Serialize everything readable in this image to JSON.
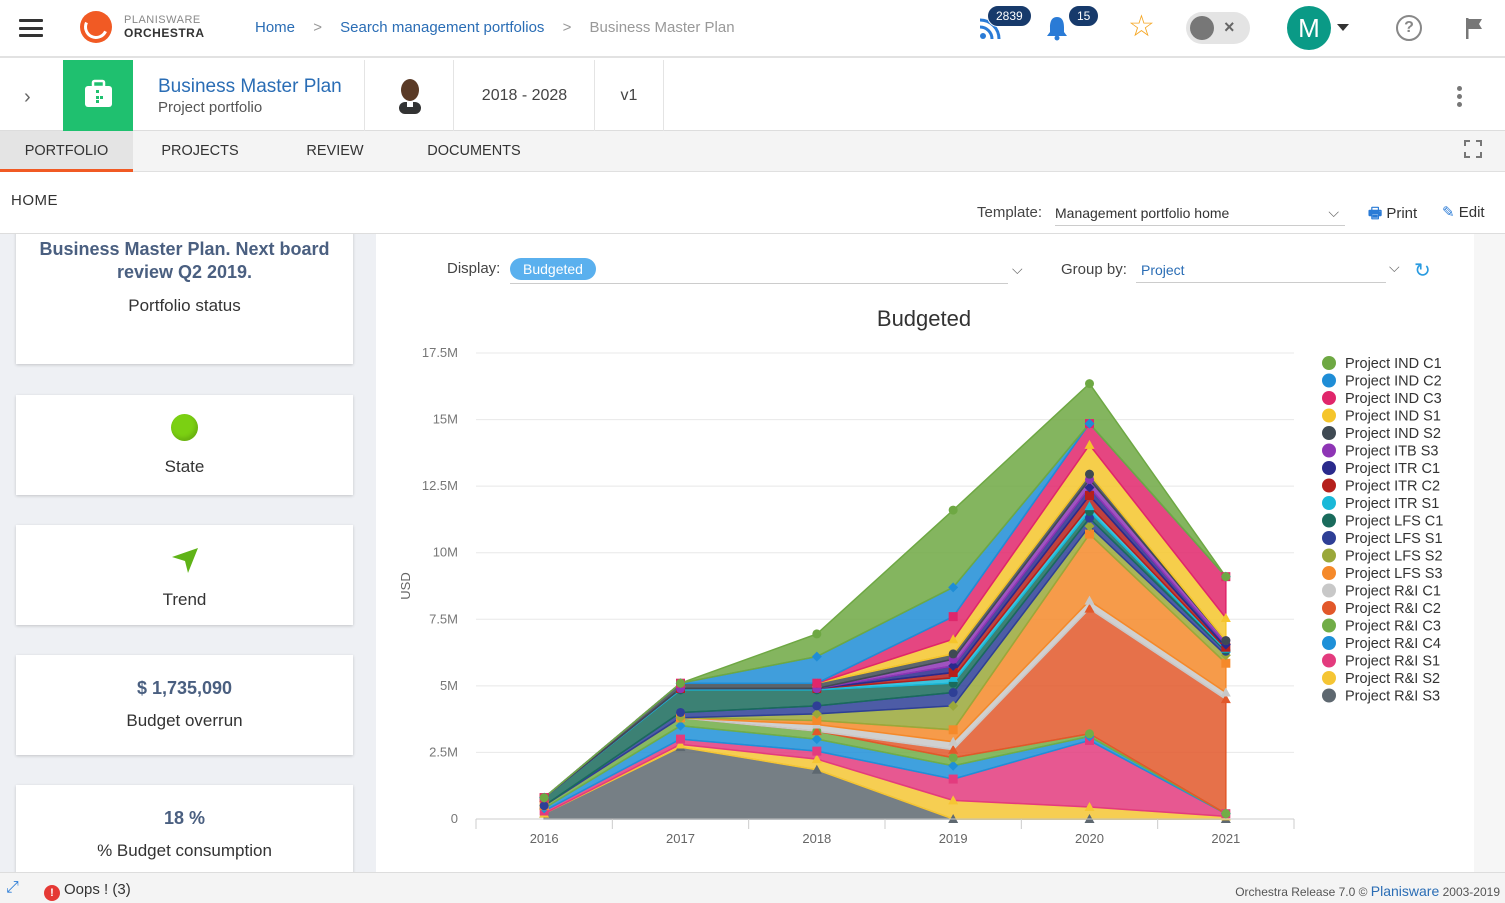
{
  "app": {
    "logo_line1": "PLANISWARE",
    "logo_line2": "ORCHESTRA"
  },
  "breadcrumb": {
    "items": [
      "Home",
      "Search management portfolios",
      "Business Master Plan"
    ],
    "separator": ">"
  },
  "topbar": {
    "feed_count": "2839",
    "notif_count": "15",
    "avatar_letter": "M",
    "help_symbol": "?"
  },
  "header": {
    "title": "Business Master Plan",
    "subtitle": "Project portfolio",
    "period": "2018 - 2028",
    "version": "v1"
  },
  "tabs": [
    "PORTFOLIO",
    "PROJECTS",
    "REVIEW",
    "DOCUMENTS"
  ],
  "home": {
    "label": "HOME",
    "template_label": "Template:",
    "template_value": "Management portfolio home",
    "print": "Print",
    "edit": "Edit"
  },
  "cards": {
    "status_title": "Business Master Plan. Next board review Q2 2019.",
    "status_label": "Portfolio status",
    "state_label": "State",
    "trend_label": "Trend",
    "overrun_value": "$ 1,735,090",
    "overrun_label": "Budget overrun",
    "consumption_value": "18 %",
    "consumption_label": "% Budget consumption"
  },
  "controls": {
    "display_label": "Display:",
    "display_chip": "Budgeted",
    "group_label": "Group by:",
    "group_value": "Project"
  },
  "footer": {
    "oops": "Oops ! (3)",
    "oops_icon": "!",
    "release_prefix": "Orchestra Release 7.0 ©",
    "release_brand": "Planisware",
    "release_years": "2003-2019"
  },
  "colors": {
    "accent": "#f15a24",
    "green": "#1fc06f",
    "link": "#2a6db5"
  },
  "chart_data": {
    "type": "area",
    "stacked": true,
    "title": "Budgeted",
    "xlabel": "",
    "ylabel": "USD",
    "x": [
      "2016",
      "2017",
      "2018",
      "2019",
      "2020",
      "2021"
    ],
    "y_ticks": [
      "0",
      "2.5M",
      "5M",
      "7.5M",
      "10M",
      "12.5M",
      "15M",
      "17.5M"
    ],
    "ylim": [
      0,
      17500000
    ],
    "legend_position": "right",
    "series": [
      {
        "name": "Project IND C1",
        "color": "#6ea843",
        "marker": "circle",
        "values": [
          0,
          0,
          0.85,
          2.9,
          1.5,
          0
        ]
      },
      {
        "name": "Project IND C2",
        "color": "#1f8dd6",
        "marker": "diamond",
        "values": [
          0,
          0,
          1.0,
          1.1,
          0,
          0
        ]
      },
      {
        "name": "Project IND C3",
        "color": "#e0266b",
        "marker": "square",
        "values": [
          0,
          0,
          0,
          0.85,
          0.8,
          1.55
        ]
      },
      {
        "name": "Project IND S1",
        "color": "#f5c52b",
        "marker": "triangle",
        "values": [
          0,
          0,
          0,
          0.55,
          1.1,
          0.85
        ]
      },
      {
        "name": "Project IND S2",
        "color": "#3f4a53",
        "marker": "circle",
        "values": [
          0,
          0.2,
          0.2,
          0.2,
          0.2,
          0
        ]
      },
      {
        "name": "Project ITB S3",
        "color": "#8e35b5",
        "marker": "circle",
        "values": [
          0,
          0,
          0,
          0.25,
          0.3,
          0.15
        ]
      },
      {
        "name": "Project ITR C1",
        "color": "#2a2a8c",
        "marker": "diamond",
        "values": [
          0,
          0,
          0,
          0.25,
          0.3,
          0.1
        ]
      },
      {
        "name": "Project ITR C2",
        "color": "#b5201c",
        "marker": "square",
        "values": [
          0,
          0,
          0,
          0.2,
          0.4,
          0.05
        ]
      },
      {
        "name": "Project ITR S1",
        "color": "#1ab8d8",
        "marker": "triangle",
        "values": [
          0,
          0.05,
          0.05,
          0.2,
          0.2,
          0.05
        ]
      },
      {
        "name": "Project LFS C1",
        "color": "#1a6b5c",
        "marker": "circle",
        "values": [
          0.3,
          0.85,
          0.6,
          0.35,
          0.25,
          0.05
        ]
      },
      {
        "name": "Project LFS S1",
        "color": "#2e3f96",
        "marker": "circle",
        "values": [
          0,
          0.2,
          0.3,
          0.5,
          0.3,
          0.15
        ]
      },
      {
        "name": "Project LFS S2",
        "color": "#9aa83a",
        "marker": "diamond",
        "values": [
          0,
          0,
          0.25,
          0.9,
          0.3,
          0.3
        ]
      },
      {
        "name": "Project LFS S3",
        "color": "#f5892a",
        "marker": "square",
        "values": [
          0,
          0,
          0.15,
          0.45,
          2.5,
          1.1
        ]
      },
      {
        "name": "Project R&I C1",
        "color": "#c8c8c8",
        "marker": "triangle",
        "values": [
          0,
          0,
          0.25,
          0.3,
          0.3,
          0.25
        ]
      },
      {
        "name": "Project R&I C2",
        "color": "#e2582a",
        "marker": "triangle",
        "values": [
          0,
          0,
          0,
          0.3,
          4.7,
          4.3
        ]
      },
      {
        "name": "Project R&I C3",
        "color": "#71ad47",
        "marker": "circle",
        "values": [
          0.1,
          0.3,
          0.3,
          0.3,
          0.1,
          0
        ]
      },
      {
        "name": "Project R&I C4",
        "color": "#1e90d8",
        "marker": "diamond",
        "values": [
          0.1,
          0.5,
          0.45,
          0.5,
          0.15,
          0
        ]
      },
      {
        "name": "Project R&I S1",
        "color": "#e33b7e",
        "marker": "square",
        "values": [
          0.1,
          0.2,
          0.3,
          0.8,
          2.5,
          0.1
        ]
      },
      {
        "name": "Project R&I S2",
        "color": "#f5c534",
        "marker": "triangle",
        "values": [
          0,
          0.1,
          0.4,
          0.7,
          0.45,
          0.1
        ]
      },
      {
        "name": "Project R&I S3",
        "color": "#5e6870",
        "marker": "triangle",
        "values": [
          0.2,
          2.7,
          1.85,
          0,
          0,
          0
        ]
      }
    ]
  }
}
